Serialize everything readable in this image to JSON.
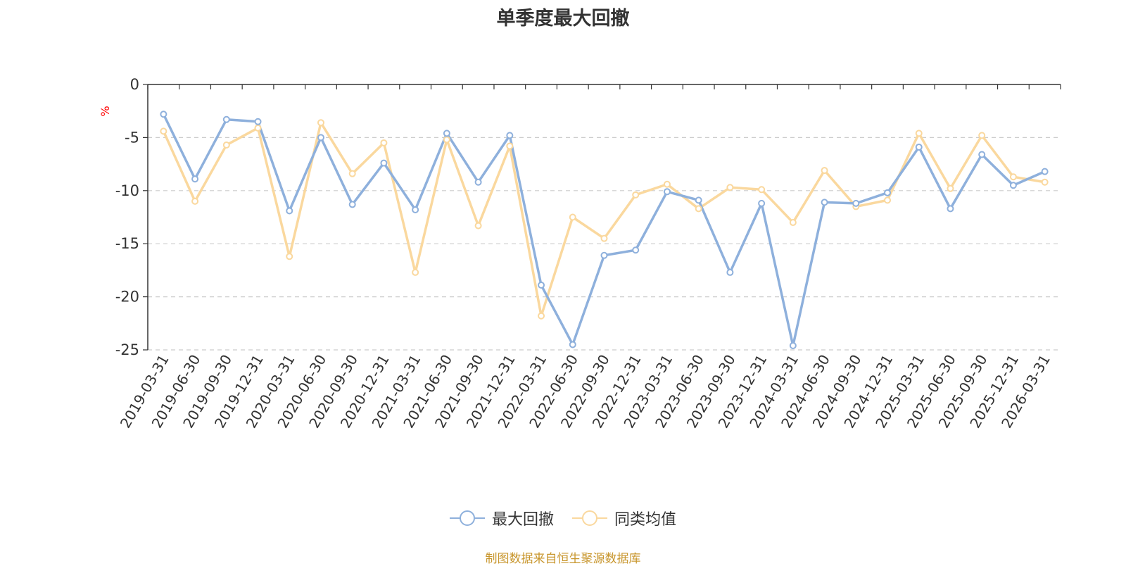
{
  "chart_data": {
    "type": "line",
    "title": "单季度最大回撤",
    "ylabel": "%",
    "ylim": [
      -25,
      0
    ],
    "yticks": [
      0,
      -5,
      -10,
      -15,
      -20,
      -25
    ],
    "grid": true,
    "legend_position": "bottom-center",
    "categories": [
      "2019-03-31",
      "2019-06-30",
      "2019-09-30",
      "2019-12-31",
      "2020-03-31",
      "2020-06-30",
      "2020-09-30",
      "2020-12-31",
      "2021-03-31",
      "2021-06-30",
      "2021-09-30",
      "2021-12-31",
      "2022-03-31",
      "2022-06-30",
      "2022-09-30",
      "2022-12-31",
      "2023-03-31",
      "2023-06-30",
      "2023-09-30",
      "2023-12-31",
      "2024-03-31",
      "2024-06-30",
      "2024-09-30",
      "2024-12-31",
      "2025-03-31",
      "2025-06-30",
      "2025-09-30",
      "2025-12-31",
      "2026-03-31"
    ],
    "series": [
      {
        "name": "最大回撤",
        "color": "#8eb0dc",
        "values": [
          -2.8,
          -8.9,
          -3.3,
          -3.5,
          -11.9,
          -5.0,
          -11.3,
          -7.4,
          -11.8,
          -4.6,
          -9.2,
          -4.8,
          -18.9,
          -24.5,
          -16.1,
          -15.6,
          -10.1,
          -10.9,
          -17.7,
          -11.2,
          -24.6,
          -11.1,
          -11.2,
          -10.2,
          -5.9,
          -11.7,
          -6.6,
          -9.5,
          -8.2
        ]
      },
      {
        "name": "同类均值",
        "color": "#fad89e",
        "values": [
          -4.4,
          -11.0,
          -5.7,
          -4.1,
          -16.2,
          -3.6,
          -8.4,
          -5.5,
          -17.7,
          -5.2,
          -13.3,
          -5.8,
          -21.8,
          -12.5,
          -14.5,
          -10.4,
          -9.4,
          -11.7,
          -9.7,
          -9.9,
          -13.0,
          -8.1,
          -11.5,
          -10.9,
          -4.6,
          -9.8,
          -4.8,
          -8.7,
          -9.2
        ]
      }
    ],
    "axis_color": "#333333",
    "grid_color": "#cccccc",
    "ylabel_color": "#ff0000"
  },
  "footer": "制图数据来自恒生聚源数据库"
}
